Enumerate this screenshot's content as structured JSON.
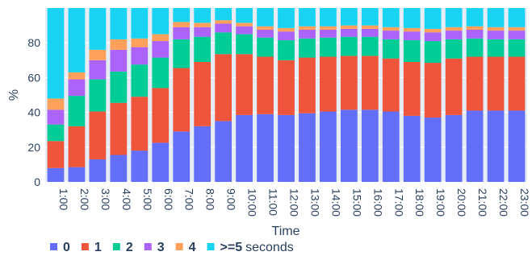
{
  "chart_data": {
    "type": "bar",
    "stacked": true,
    "title": "",
    "xlabel": "Time",
    "ylabel": "%",
    "ylim": [
      0,
      100
    ],
    "yticks": [
      0,
      20,
      40,
      60,
      80
    ],
    "grid": true,
    "legend_position": "bottom",
    "legend_suffix": "seconds",
    "categories": [
      "1:00",
      "2:00",
      "3:00",
      "4:00",
      "5:00",
      "6:00",
      "7:00",
      "8:00",
      "9:00",
      "10:00",
      "11:00",
      "12:00",
      "13:00",
      "14:00",
      "15:00",
      "16:00",
      "17:00",
      "18:00",
      "19:00",
      "20:00",
      "21:00",
      "22:00",
      "23:00"
    ],
    "series": [
      {
        "name": "0",
        "color": "#636efa",
        "values": [
          8,
          8.5,
          13,
          15.5,
          18,
          22.5,
          29,
          32,
          35,
          38.5,
          39,
          38.5,
          39.5,
          40.5,
          41.5,
          41.5,
          40.5,
          38,
          37,
          38.5,
          41,
          41,
          41
        ]
      },
      {
        "name": "1",
        "color": "#ef553b",
        "values": [
          15.5,
          23.5,
          27.5,
          30,
          31,
          31.5,
          36.5,
          37,
          38.5,
          35,
          33,
          31.5,
          32,
          31.5,
          31,
          31,
          30.5,
          31,
          31.5,
          32.5,
          31,
          31,
          31
        ]
      },
      {
        "name": "2",
        "color": "#00cc96",
        "values": [
          9.5,
          17.5,
          18.5,
          18,
          18.5,
          17.5,
          16.5,
          14.5,
          12.5,
          11.5,
          11,
          11.5,
          11,
          11,
          11,
          11,
          11,
          12.5,
          12.5,
          11,
          10.5,
          10,
          10
        ]
      },
      {
        "name": "3",
        "color": "#ab63fa",
        "values": [
          8.5,
          9.5,
          11,
          12.5,
          10,
          9.5,
          7,
          5.5,
          5,
          4.5,
          4.5,
          5,
          5,
          4.5,
          4.5,
          4.5,
          5,
          5,
          5,
          5,
          5,
          5,
          5
        ]
      },
      {
        "name": "4",
        "color": "#ffa15a",
        "values": [
          6.5,
          4,
          6,
          6,
          5,
          4,
          3,
          2.5,
          2,
          2,
          2,
          2,
          2,
          2,
          2,
          2,
          2,
          2,
          2,
          2,
          2,
          2,
          2
        ]
      },
      {
        "name": ">=5",
        "color": "#19d3f3",
        "values": [
          52,
          37,
          24,
          18,
          17.5,
          15,
          8,
          8.5,
          7,
          8.5,
          10.5,
          11.5,
          10.5,
          10.5,
          10,
          10,
          11,
          11.5,
          12,
          11,
          10.5,
          11,
          11
        ]
      }
    ]
  }
}
